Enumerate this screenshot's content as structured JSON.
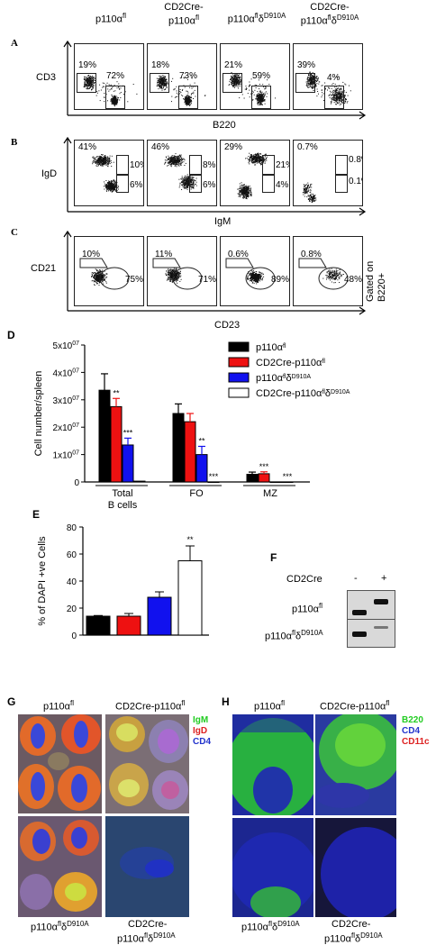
{
  "figure": {
    "panel_A": {
      "letter": "A",
      "headers": [
        "p110α^fl",
        "CD2Cre-p110α^fl",
        "p110α^flδ^D910A",
        "CD2Cre-p110α^flδ^D910A"
      ],
      "header_lines": [
        [
          "p110αfl"
        ],
        [
          "CD2Cre-",
          "p110αfl"
        ],
        [
          "p110αflδD910A"
        ],
        [
          "CD2Cre-",
          "p110αflδD910A"
        ]
      ],
      "y_label": "CD3",
      "x_label": "B220",
      "gate_pcts": [
        [
          "19%",
          "72%"
        ],
        [
          "18%",
          "73%"
        ],
        [
          "21%",
          "59%"
        ],
        [
          "39%",
          "4%"
        ]
      ]
    },
    "panel_B": {
      "letter": "B",
      "y_label": "IgD",
      "x_label": "IgM",
      "pcts": [
        [
          "41%",
          "10%",
          "6%"
        ],
        [
          "46%",
          "8%",
          "6%"
        ],
        [
          "29%",
          "21%",
          "4%"
        ],
        [
          "0.7%",
          "0.8%",
          "0.1%"
        ]
      ]
    },
    "panel_C": {
      "letter": "C",
      "y_label": "CD21",
      "x_label": "CD23",
      "side_label": "Gated on B220+",
      "side_lines": [
        "Gated on",
        "B220+"
      ],
      "pcts": [
        [
          "10%",
          "75%"
        ],
        [
          "11%",
          "71%"
        ],
        [
          "0.6%",
          "89%"
        ],
        [
          "0.8%",
          "48%"
        ]
      ]
    },
    "panel_D": {
      "letter": "D",
      "legend": [
        "p110αfl",
        "CD2Cre-p110αfl",
        "p110αflδD910A",
        "CD2Cre-p110αflδD910A"
      ]
    },
    "panel_E": {
      "letter": "E"
    },
    "panel_F": {
      "letter": "F",
      "col_label": "CD2Cre",
      "col_signs": [
        "-",
        "+"
      ],
      "rows": [
        "p110αfl",
        "p110αflδD910A"
      ]
    },
    "panel_G": {
      "letter": "G",
      "labels": [
        "p110αfl",
        "CD2Cre-p110αfl",
        "p110αflδD910A",
        "CD2Cre-",
        "p110αflδD910A"
      ],
      "stain_legend": [
        {
          "text": "IgM",
          "color": "#22cc22"
        },
        {
          "text": "IgD",
          "color": "#dd2222"
        },
        {
          "text": "CD4",
          "color": "#2233cc"
        }
      ]
    },
    "panel_H": {
      "letter": "H",
      "labels": [
        "p110αfl",
        "CD2Cre-p110αfl",
        "p110αflδD910A",
        "CD2Cre-",
        "p110αflδD910A"
      ],
      "stain_legend": [
        {
          "text": "B220",
          "color": "#22cc22"
        },
        {
          "text": "CD4",
          "color": "#2233cc"
        },
        {
          "text": "CD11c",
          "color": "#dd2222"
        }
      ]
    }
  },
  "chart_data": [
    {
      "type": "bar",
      "panel": "D",
      "ylabel": "Cell number/spleen",
      "categories": [
        "Total B cells",
        "FO",
        "MZ"
      ],
      "category_lines": [
        [
          "Total",
          "B cells"
        ],
        [
          "FO"
        ],
        [
          "MZ"
        ]
      ],
      "ylim": [
        0,
        50000000
      ],
      "yticks": [
        "0",
        "1x10^07",
        "2x10^07",
        "3x10^07",
        "4x10^07",
        "5x10^07"
      ],
      "series": [
        {
          "name": "p110αfl",
          "color": "#000000",
          "values": [
            33500000,
            25000000,
            2800000
          ],
          "errors": [
            6000000,
            3500000,
            800000
          ],
          "sig": [
            "",
            "",
            ""
          ]
        },
        {
          "name": "CD2Cre-p110αfl",
          "color": "#ee1111",
          "values": [
            27500000,
            22000000,
            3000000
          ],
          "errors": [
            3000000,
            3000000,
            700000
          ],
          "sig": [
            "**",
            "",
            "***"
          ]
        },
        {
          "name": "p110αflδD910A",
          "color": "#1111ee",
          "values": [
            13500000,
            10000000,
            0
          ],
          "errors": [
            2500000,
            3000000,
            0
          ],
          "sig": [
            "***",
            "**",
            ""
          ]
        },
        {
          "name": "CD2Cre-p110αflδD910A",
          "color": "#ffffff",
          "values": [
            300000,
            0,
            0
          ],
          "errors": [
            0,
            0,
            0
          ],
          "sig": [
            "",
            "***",
            "***"
          ]
        }
      ]
    },
    {
      "type": "bar",
      "panel": "E",
      "ylabel": "% of DAPI +ve Cells",
      "ylim": [
        0,
        80
      ],
      "yticks": [
        "0",
        "20",
        "40",
        "60",
        "80"
      ],
      "categories": [
        "p110αfl",
        "CD2Cre-p110αfl",
        "p110αflδD910A",
        "CD2Cre-p110αflδD910A"
      ],
      "values": [
        14,
        14,
        28,
        55
      ],
      "errors": [
        0.5,
        2,
        4,
        11
      ],
      "colors": [
        "#000000",
        "#ee1111",
        "#1111ee",
        "#ffffff"
      ],
      "sig": [
        "",
        "",
        "",
        "**"
      ]
    }
  ]
}
